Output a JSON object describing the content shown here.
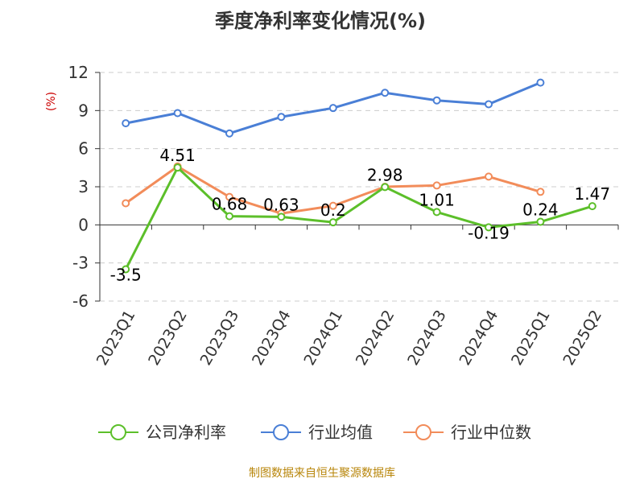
{
  "chart_data": {
    "type": "line",
    "title": "季度净利率变化情况(%)",
    "ylabel": "(%)",
    "xlabel": "",
    "ylim": [
      -6,
      12
    ],
    "yticks": [
      12,
      9,
      6,
      3,
      0,
      -3,
      -6
    ],
    "grid": true,
    "legend_position": "bottom",
    "categories": [
      "2023Q1",
      "2023Q2",
      "2023Q3",
      "2023Q4",
      "2024Q1",
      "2024Q2",
      "2024Q3",
      "2024Q4",
      "2025Q1",
      "2025Q2"
    ],
    "series": [
      {
        "name": "公司净利率",
        "color": "#5cbf2a",
        "show_labels": true,
        "values": [
          -3.5,
          4.51,
          0.68,
          0.63,
          0.2,
          2.98,
          1.01,
          -0.19,
          0.24,
          1.47
        ],
        "labels": [
          "-3.5",
          "4.51",
          "0.68",
          "0.63",
          "0.2",
          "2.98",
          "1.01",
          "-0.19",
          "0.24",
          "1.47"
        ]
      },
      {
        "name": "行业均值",
        "color": "#4a7fd6",
        "show_labels": false,
        "values": [
          8.0,
          8.8,
          7.2,
          8.5,
          9.2,
          10.4,
          9.8,
          9.5,
          11.2,
          null
        ]
      },
      {
        "name": "行业中位数",
        "color": "#f28c5a",
        "show_labels": false,
        "values": [
          1.7,
          4.6,
          2.2,
          0.9,
          1.5,
          3.0,
          3.1,
          3.8,
          2.6,
          null
        ]
      }
    ]
  },
  "source": "制图数据来自恒生聚源数据库"
}
